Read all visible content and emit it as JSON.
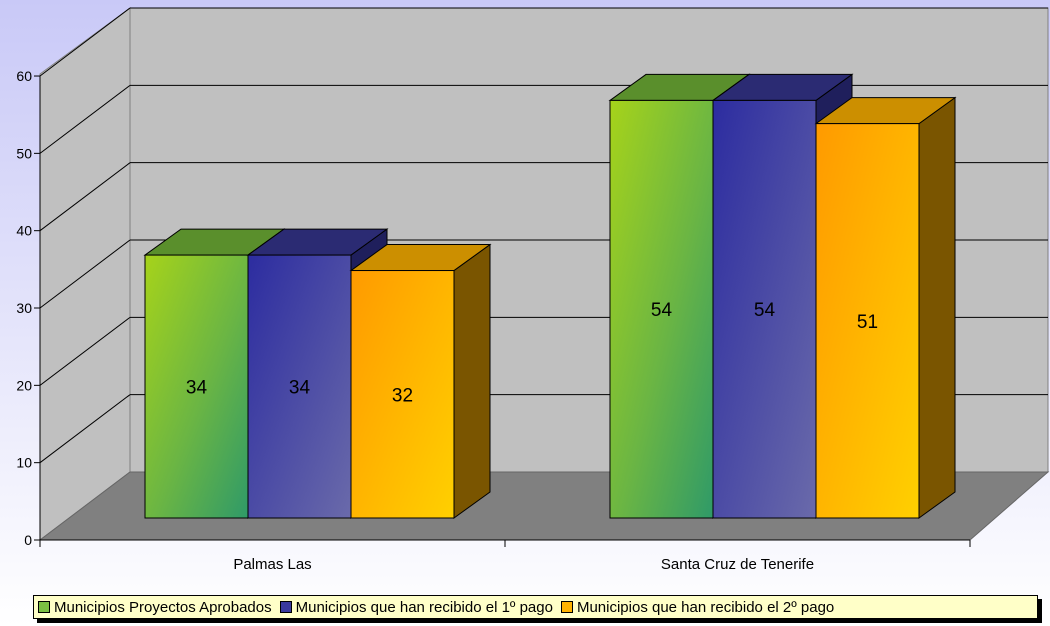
{
  "chart_data": {
    "type": "bar",
    "categories": [
      "Palmas Las",
      "Santa Cruz de Tenerife"
    ],
    "series": [
      {
        "name": "Municipios Proyectos Aprobados",
        "values": [
          34,
          54
        ],
        "color": "#7bc043"
      },
      {
        "name": "Municipios que han recibido el 1º pago",
        "values": [
          34,
          54
        ],
        "color": "#3a3a9e"
      },
      {
        "name": "Municipios que han recibido el 2º pago",
        "values": [
          32,
          51
        ],
        "color": "#ffb300"
      }
    ],
    "ylim": [
      0,
      60
    ],
    "yticks": [
      "0",
      "10",
      "20",
      "30",
      "40",
      "50",
      "60"
    ],
    "data_labels": [
      [
        "34",
        "54"
      ],
      [
        "34",
        "54"
      ],
      [
        "32",
        "51"
      ]
    ],
    "grid": true,
    "legend_position": "bottom",
    "three_d": true
  }
}
